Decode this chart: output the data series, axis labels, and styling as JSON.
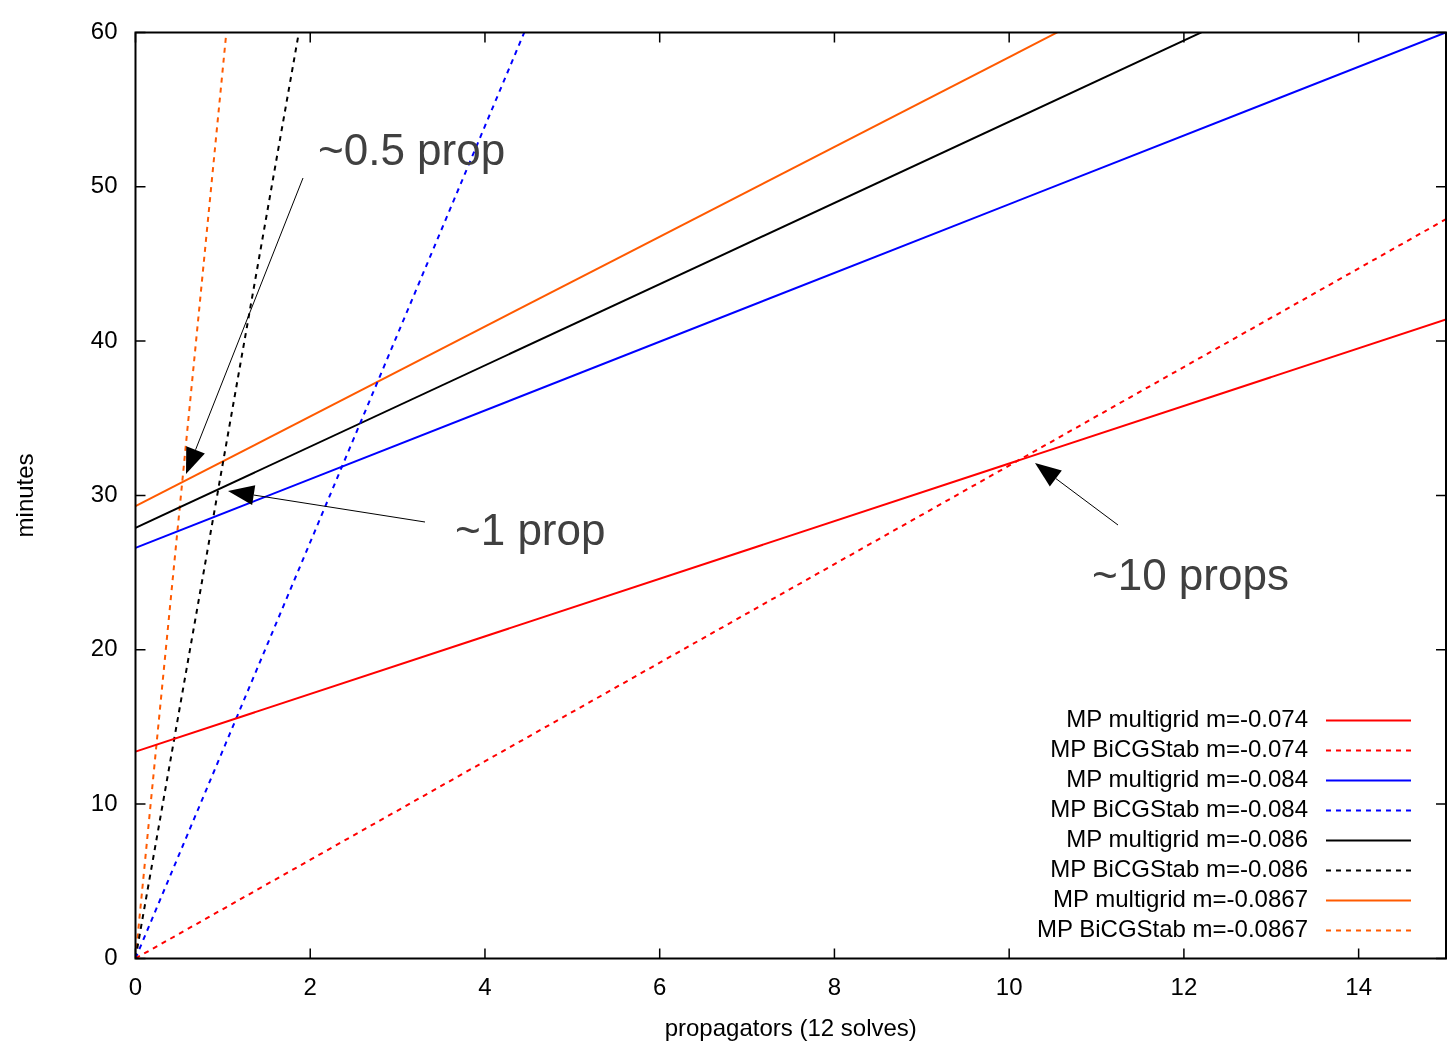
{
  "chart_data": {
    "type": "line",
    "xlabel": "propagators (12 solves)",
    "ylabel": "minutes",
    "xlim": [
      0,
      15
    ],
    "ylim": [
      0,
      60
    ],
    "xticks": [
      0,
      2,
      4,
      6,
      8,
      10,
      12,
      14
    ],
    "yticks": [
      0,
      10,
      20,
      30,
      40,
      50,
      60
    ],
    "grid": false,
    "legend": "bottom right",
    "marker": "none",
    "series": [
      {
        "name": "MP multigrid m=-0.074",
        "color": "#ff0000",
        "line_style": "solid",
        "x": [
          0,
          15
        ],
        "values": [
          13.4,
          41.4
        ]
      },
      {
        "name": "MP BiCGStab m=-0.074",
        "color": "#ff0000",
        "line_style": "dashed",
        "x": [
          0,
          15
        ],
        "values": [
          0,
          47.9
        ]
      },
      {
        "name": "MP multigrid m=-0.084",
        "color": "#0000ff",
        "line_style": "solid",
        "x": [
          0,
          15
        ],
        "values": [
          26.6,
          60
        ]
      },
      {
        "name": "MP BiCGStab m=-0.084",
        "color": "#0000ff",
        "line_style": "dashed",
        "x": [
          0,
          4.45
        ],
        "values": [
          0,
          60
        ]
      },
      {
        "name": "MP multigrid m=-0.086",
        "color": "#000000",
        "line_style": "solid",
        "x": [
          0,
          12.2
        ],
        "values": [
          27.9,
          60
        ]
      },
      {
        "name": "MP BiCGStab m=-0.086",
        "color": "#000000",
        "line_style": "dashed",
        "x": [
          0,
          1.87
        ],
        "values": [
          0,
          60
        ]
      },
      {
        "name": "MP multigrid m=-0.0867",
        "color": "#ff5a00",
        "line_style": "solid",
        "x": [
          0,
          10.55
        ],
        "values": [
          29.3,
          60
        ]
      },
      {
        "name": "MP BiCGStab m=-0.0867",
        "color": "#ff5a00",
        "line_style": "dashed",
        "x": [
          0,
          1.04
        ],
        "values": [
          0,
          60
        ]
      }
    ],
    "annotations": [
      "~0.5 prop",
      "~1 prop",
      "~10 props"
    ]
  }
}
